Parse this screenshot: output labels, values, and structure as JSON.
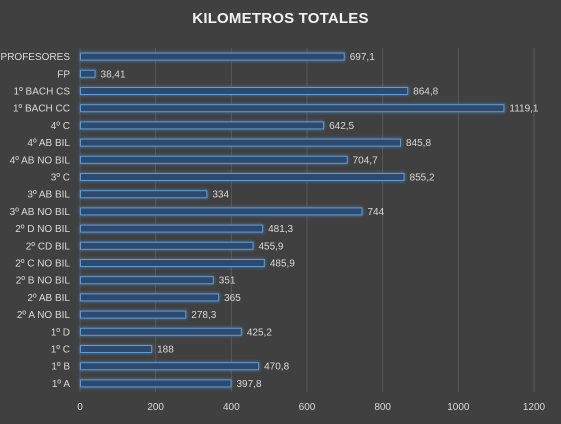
{
  "chart_data": {
    "type": "bar",
    "orientation": "horizontal",
    "title": "KILOMETROS TOTALES",
    "categories": [
      "PROFESORES",
      "FP",
      "1º BACH CS",
      "1º BACH CC",
      "4º C",
      "4º AB BIL",
      "4º AB NO BIL",
      "3º C",
      "3º AB BIL",
      "3º AB NO BIL",
      "2º D NO BIL",
      "2º CD BIL",
      "2º C NO BIL",
      "2º B NO BIL",
      "2º AB BIL",
      "2º A NO BIL",
      "1º D",
      "1º C",
      "1º B",
      "1º A"
    ],
    "values": [
      697.1,
      38.41,
      864.8,
      1119.1,
      642.5,
      845.8,
      704.7,
      855.2,
      334,
      744,
      481.3,
      455.9,
      485.9,
      351,
      365,
      278.3,
      425.2,
      188,
      470.8,
      397.8
    ],
    "value_labels": [
      "697,1",
      "38,41",
      "864,8",
      "1119,1",
      "642,5",
      "845,8",
      "704,7",
      "855,2",
      "334",
      "744",
      "481,3",
      "455,9",
      "485,9",
      "351",
      "365",
      "278,3",
      "425,2",
      "188",
      "470,8",
      "397,8"
    ],
    "xlim": [
      0,
      1200
    ],
    "x_ticks": [
      0,
      200,
      400,
      600,
      800,
      1000,
      1200
    ],
    "x_tick_labels": [
      "0",
      "200",
      "400",
      "600",
      "800",
      "1000",
      "1200"
    ],
    "grid": true,
    "legend": "none",
    "colors": {
      "background": "#404040",
      "bar_fill": "#2f4a6e",
      "bar_stroke": "#5b9bd5",
      "bar_glow": "#4f8fd6",
      "grid": "#595959",
      "text": "#d9d9d9",
      "title": "#f2f2f2"
    }
  }
}
